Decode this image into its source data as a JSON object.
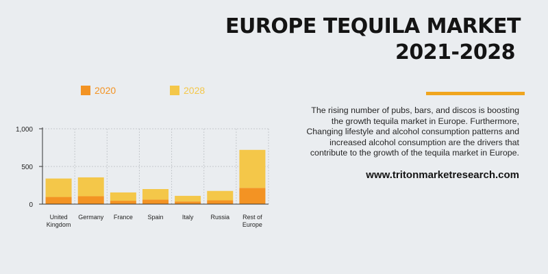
{
  "header": {
    "title_line1": "EUROPE TEQUILA MARKET",
    "title_line2": "2021-2028"
  },
  "description": "The rising number of pubs, bars, and discos is boosting the growth tequila market in Europe. Furthermore, Changing lifestyle and alcohol consumption patterns and increased alcohol consumption are the drivers that contribute to the growth of the tequila market in Europe.",
  "website": "www.tritonmarketresearch.com",
  "colors": {
    "accent": "#f0a51f",
    "series_2020": "#f39323",
    "series_2028": "#f4c749"
  },
  "chart_data": {
    "type": "bar",
    "stacked": true,
    "categories": [
      [
        "United",
        "Kingdom"
      ],
      [
        "Germany"
      ],
      [
        "France"
      ],
      [
        "Spain"
      ],
      [
        "Italy"
      ],
      [
        "Russia"
      ],
      [
        "Rest of",
        "Europe"
      ]
    ],
    "series": [
      {
        "name": "2020",
        "values": [
          95,
          105,
          45,
          60,
          35,
          50,
          215
        ],
        "color": "#f39323"
      },
      {
        "name": "2028",
        "values": [
          245,
          250,
          110,
          140,
          75,
          125,
          505
        ],
        "color": "#f4c749"
      }
    ],
    "yticks": [
      0,
      500,
      1000
    ],
    "ytick_labels": [
      "0",
      "500",
      "1,000"
    ],
    "ylim": [
      0,
      1000
    ],
    "grid": true,
    "legend": "top"
  }
}
